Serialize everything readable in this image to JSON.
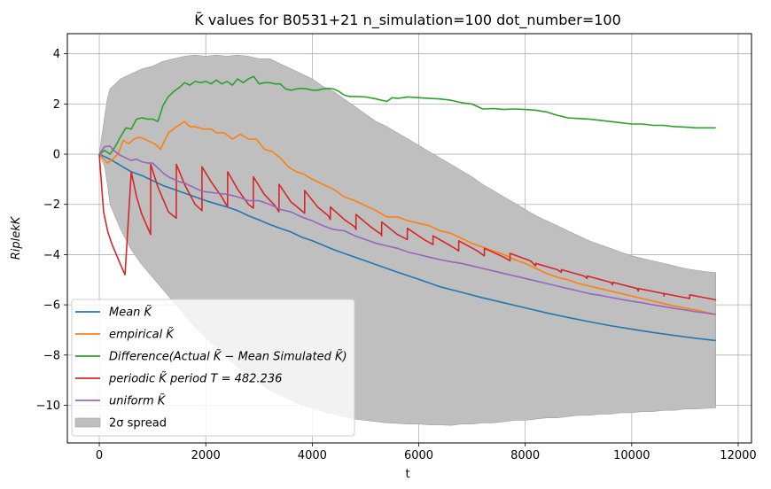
{
  "chart_data": {
    "type": "line",
    "title": "K̃ values for B0531+21 n_simulation=100 dot_number=100",
    "xlabel": "t",
    "ylabel": "RiplekK",
    "xlim": [
      -600,
      12250
    ],
    "ylim": [
      -11.5,
      4.8
    ],
    "xticks": [
      0,
      2000,
      4000,
      6000,
      8000,
      10000,
      12000
    ],
    "yticks": [
      4,
      2,
      0,
      -2,
      -4,
      -6,
      -8,
      -10
    ],
    "grid": true,
    "legend_position": "lower-left",
    "colors": {
      "mean": "#1f77b4",
      "empirical": "#ff7f0e",
      "difference": "#2ca02c",
      "periodic": "#d62728",
      "uniform": "#9467bd",
      "band": "#bfbfbf"
    },
    "band": {
      "name": "2σ spread",
      "x": [
        0,
        100,
        150,
        200,
        300,
        400,
        500,
        600,
        700,
        800,
        1000,
        1200,
        1400,
        1600,
        1800,
        2000,
        2200,
        2400,
        2600,
        2800,
        3000,
        3200,
        3400,
        3600,
        3800,
        4000,
        4200,
        4400,
        4600,
        4800,
        5000,
        5200,
        5400,
        5600,
        5800,
        6000,
        6200,
        6400,
        6600,
        6800,
        7000,
        7200,
        7400,
        7600,
        7800,
        8000,
        8200,
        8400,
        8600,
        8800,
        9000,
        9200,
        9400,
        9600,
        9800,
        10000,
        10200,
        10400,
        10600,
        10800,
        11000,
        11200,
        11400,
        11580
      ],
      "upper": [
        0,
        1.5,
        2.2,
        2.6,
        2.8,
        3.0,
        3.1,
        3.2,
        3.3,
        3.4,
        3.5,
        3.7,
        3.8,
        3.9,
        3.95,
        3.9,
        3.95,
        3.9,
        3.95,
        3.9,
        3.8,
        3.8,
        3.6,
        3.4,
        3.2,
        3.0,
        2.7,
        2.5,
        2.2,
        1.9,
        1.6,
        1.3,
        1.1,
        0.85,
        0.6,
        0.35,
        0.1,
        -0.15,
        -0.4,
        -0.65,
        -0.9,
        -1.2,
        -1.45,
        -1.7,
        -1.95,
        -2.2,
        -2.45,
        -2.65,
        -2.85,
        -3.05,
        -3.25,
        -3.45,
        -3.6,
        -3.75,
        -3.9,
        -4.05,
        -4.15,
        -4.25,
        -4.35,
        -4.45,
        -4.55,
        -4.62,
        -4.68,
        -4.72
      ],
      "lower": [
        0,
        -0.5,
        -1.2,
        -2.0,
        -2.5,
        -3.0,
        -3.4,
        -3.8,
        -4.1,
        -4.4,
        -4.9,
        -5.4,
        -5.9,
        -6.4,
        -6.9,
        -7.3,
        -7.7,
        -8.1,
        -8.5,
        -8.8,
        -9.1,
        -9.4,
        -9.6,
        -9.8,
        -10.0,
        -10.1,
        -10.25,
        -10.35,
        -10.45,
        -10.55,
        -10.6,
        -10.65,
        -10.7,
        -10.72,
        -10.75,
        -10.75,
        -10.78,
        -10.78,
        -10.8,
        -10.75,
        -10.75,
        -10.7,
        -10.7,
        -10.65,
        -10.6,
        -10.6,
        -10.55,
        -10.5,
        -10.5,
        -10.45,
        -10.4,
        -10.4,
        -10.35,
        -10.35,
        -10.3,
        -10.3,
        -10.25,
        -10.25,
        -10.2,
        -10.2,
        -10.15,
        -10.15,
        -10.12,
        -10.1
      ]
    },
    "series": [
      {
        "name": "Mean K̃",
        "key": "mean",
        "x": [
          0,
          200,
          400,
          600,
          800,
          1000,
          1200,
          1400,
          1600,
          1800,
          2000,
          2200,
          2400,
          2600,
          2800,
          3000,
          3200,
          3400,
          3600,
          3800,
          4000,
          4400,
          4800,
          5200,
          5600,
          6000,
          6400,
          6800,
          7200,
          7600,
          8000,
          8400,
          8800,
          9200,
          9600,
          10000,
          10400,
          10800,
          11200,
          11580
        ],
        "y": [
          0,
          -0.2,
          -0.45,
          -0.7,
          -0.85,
          -1.05,
          -1.25,
          -1.4,
          -1.55,
          -1.7,
          -1.85,
          -1.98,
          -2.1,
          -2.25,
          -2.45,
          -2.62,
          -2.8,
          -2.95,
          -3.1,
          -3.3,
          -3.45,
          -3.8,
          -4.1,
          -4.4,
          -4.7,
          -4.98,
          -5.28,
          -5.5,
          -5.72,
          -5.92,
          -6.12,
          -6.32,
          -6.5,
          -6.67,
          -6.83,
          -6.97,
          -7.1,
          -7.22,
          -7.33,
          -7.42
        ]
      },
      {
        "name": "empirical K̃",
        "key": "empirical",
        "x": [
          0,
          150,
          250,
          350,
          450,
          550,
          650,
          750,
          850,
          950,
          1050,
          1150,
          1300,
          1450,
          1600,
          1700,
          1800,
          1950,
          2100,
          2200,
          2350,
          2500,
          2650,
          2800,
          2950,
          3100,
          3250,
          3400,
          3550,
          3700,
          3850,
          4000,
          4200,
          4400,
          4600,
          4800,
          5000,
          5200,
          5400,
          5600,
          5800,
          6000,
          6200,
          6400,
          6600,
          6800,
          7000,
          7200,
          7400,
          7600,
          7800,
          8000,
          8200,
          8400,
          8600,
          8800,
          9000,
          9200,
          9400,
          9600,
          9800,
          10000,
          10200,
          10400,
          10600,
          10800,
          11000,
          11200,
          11400,
          11580
        ],
        "y": [
          0,
          -0.35,
          -0.2,
          0.0,
          0.55,
          0.42,
          0.6,
          0.68,
          0.6,
          0.5,
          0.4,
          0.2,
          0.85,
          1.1,
          1.3,
          1.1,
          1.1,
          1.0,
          1.0,
          0.85,
          0.85,
          0.6,
          0.8,
          0.6,
          0.6,
          0.2,
          0.1,
          -0.15,
          -0.5,
          -0.7,
          -0.8,
          -1.0,
          -1.2,
          -1.4,
          -1.7,
          -1.85,
          -2.05,
          -2.25,
          -2.5,
          -2.5,
          -2.65,
          -2.75,
          -2.85,
          -3.05,
          -3.15,
          -3.35,
          -3.55,
          -3.7,
          -3.85,
          -4.0,
          -4.2,
          -4.35,
          -4.55,
          -4.75,
          -4.9,
          -5.0,
          -5.15,
          -5.25,
          -5.35,
          -5.45,
          -5.55,
          -5.65,
          -5.75,
          -5.85,
          -5.95,
          -6.05,
          -6.12,
          -6.2,
          -6.3,
          -6.38
        ]
      },
      {
        "name": "Difference(Actual K̃ − Mean Simulated K̃)",
        "key": "difference",
        "x": [
          0,
          100,
          200,
          300,
          400,
          500,
          600,
          700,
          800,
          900,
          1000,
          1100,
          1200,
          1300,
          1400,
          1500,
          1600,
          1700,
          1800,
          1900,
          2000,
          2100,
          2200,
          2300,
          2400,
          2500,
          2600,
          2700,
          2800,
          2900,
          3000,
          3100,
          3200,
          3300,
          3400,
          3500,
          3600,
          3700,
          3800,
          3900,
          4000,
          4100,
          4200,
          4300,
          4400,
          4500,
          4600,
          4700,
          4800,
          5000,
          5200,
          5400,
          5500,
          5600,
          5800,
          6000,
          6200,
          6400,
          6600,
          6800,
          7000,
          7200,
          7400,
          7600,
          7800,
          8000,
          8200,
          8400,
          8600,
          8800,
          9000,
          9200,
          9400,
          9600,
          9800,
          10000,
          10200,
          10400,
          10600,
          10800,
          11000,
          11200,
          11400,
          11580
        ],
        "y": [
          0,
          0.15,
          0.0,
          0.3,
          0.7,
          1.05,
          1.0,
          1.4,
          1.45,
          1.4,
          1.4,
          1.3,
          1.95,
          2.3,
          2.5,
          2.65,
          2.85,
          2.75,
          2.9,
          2.85,
          2.9,
          2.8,
          2.95,
          2.8,
          2.9,
          2.75,
          3.0,
          2.85,
          3.0,
          3.1,
          2.8,
          2.85,
          2.85,
          2.8,
          2.8,
          2.6,
          2.55,
          2.6,
          2.62,
          2.6,
          2.55,
          2.55,
          2.6,
          2.62,
          2.6,
          2.5,
          2.35,
          2.3,
          2.3,
          2.28,
          2.2,
          2.1,
          2.25,
          2.22,
          2.28,
          2.25,
          2.22,
          2.2,
          2.15,
          2.05,
          2.0,
          1.8,
          1.82,
          1.78,
          1.8,
          1.78,
          1.75,
          1.68,
          1.55,
          1.45,
          1.42,
          1.4,
          1.35,
          1.3,
          1.25,
          1.2,
          1.2,
          1.15,
          1.15,
          1.1,
          1.08,
          1.05,
          1.05,
          1.05
        ]
      },
      {
        "name": "periodic K̃ period T = 482.236",
        "key": "periodic",
        "x": [
          0,
          80,
          160,
          240,
          320,
          400,
          482,
          483,
          600,
          700,
          800,
          964,
          965,
          1100,
          1300,
          1446,
          1447,
          1600,
          1800,
          1928,
          1929,
          2100,
          2300,
          2410,
          2411,
          2600,
          2800,
          2893,
          2894,
          3100,
          3300,
          3375,
          3376,
          3600,
          3800,
          3857,
          3858,
          4100,
          4300,
          4339,
          4340,
          4600,
          4800,
          4821,
          4822,
          5100,
          5300,
          5303,
          5304,
          5600,
          5785,
          5786,
          6100,
          6267,
          6268,
          6600,
          6750,
          6751,
          7100,
          7232,
          7233,
          7600,
          7714,
          7715,
          8100,
          8196,
          8197,
          8600,
          8678,
          8679,
          9100,
          9160,
          9161,
          9600,
          9642,
          9643,
          10100,
          10125,
          10126,
          10600,
          10607,
          10608,
          11089,
          11090,
          11571,
          11580
        ],
        "y": [
          0,
          -2.3,
          -3.1,
          -3.6,
          -4.0,
          -4.4,
          -4.8,
          -4.8,
          -0.7,
          -1.7,
          -2.4,
          -3.2,
          -0.4,
          -1.3,
          -2.3,
          -2.55,
          -0.4,
          -1.2,
          -2.0,
          -2.25,
          -0.5,
          -1.1,
          -1.7,
          -2.1,
          -0.7,
          -1.4,
          -2.0,
          -2.15,
          -0.9,
          -1.6,
          -2.05,
          -2.3,
          -1.2,
          -1.9,
          -2.25,
          -2.35,
          -1.45,
          -2.1,
          -2.45,
          -2.6,
          -2.1,
          -2.6,
          -2.9,
          -3.0,
          -2.4,
          -2.9,
          -3.2,
          -3.25,
          -2.7,
          -3.2,
          -3.4,
          -2.95,
          -3.4,
          -3.6,
          -3.25,
          -3.65,
          -3.85,
          -3.45,
          -3.85,
          -4.05,
          -3.75,
          -4.1,
          -4.25,
          -3.95,
          -4.25,
          -4.45,
          -4.35,
          -4.6,
          -4.7,
          -4.6,
          -4.85,
          -4.95,
          -4.85,
          -5.1,
          -5.2,
          -5.1,
          -5.35,
          -5.45,
          -5.35,
          -5.55,
          -5.65,
          -5.55,
          -5.75,
          -5.6,
          -5.8,
          -5.82
        ]
      },
      {
        "name": "uniform K̃",
        "key": "uniform",
        "x": [
          0,
          100,
          200,
          300,
          400,
          500,
          600,
          700,
          800,
          900,
          1000,
          1100,
          1200,
          1300,
          1400,
          1500,
          1600,
          1700,
          1800,
          1900,
          2000,
          2200,
          2400,
          2600,
          2800,
          3000,
          3200,
          3400,
          3600,
          3800,
          4000,
          4200,
          4400,
          4600,
          4800,
          5000,
          5200,
          5400,
          5600,
          5800,
          6000,
          6200,
          6400,
          6600,
          6800,
          7000,
          7200,
          7400,
          7600,
          7800,
          8000,
          8200,
          8400,
          8600,
          8800,
          9000,
          9200,
          9400,
          9600,
          9800,
          10000,
          10200,
          10400,
          10600,
          10800,
          11000,
          11200,
          11400,
          11580
        ],
        "y": [
          0,
          0.3,
          0.32,
          0.1,
          -0.05,
          -0.15,
          -0.25,
          -0.2,
          -0.3,
          -0.35,
          -0.35,
          -0.55,
          -0.75,
          -0.9,
          -1.0,
          -1.1,
          -1.15,
          -1.25,
          -1.35,
          -1.45,
          -1.5,
          -1.55,
          -1.6,
          -1.7,
          -1.85,
          -1.85,
          -2.0,
          -2.2,
          -2.3,
          -2.5,
          -2.65,
          -2.85,
          -3.0,
          -3.05,
          -3.25,
          -3.4,
          -3.55,
          -3.65,
          -3.75,
          -3.9,
          -4.0,
          -4.1,
          -4.2,
          -4.28,
          -4.35,
          -4.45,
          -4.55,
          -4.65,
          -4.75,
          -4.85,
          -4.95,
          -5.05,
          -5.15,
          -5.25,
          -5.35,
          -5.45,
          -5.55,
          -5.62,
          -5.7,
          -5.78,
          -5.85,
          -5.92,
          -6.0,
          -6.07,
          -6.14,
          -6.2,
          -6.27,
          -6.33,
          -6.38
        ]
      }
    ],
    "legend": [
      {
        "key": "mean",
        "label": "Mean K̃"
      },
      {
        "key": "empirical",
        "label": "empirical K̃"
      },
      {
        "key": "difference",
        "label": "Difference(Actual K̃ − Mean Simulated K̃)"
      },
      {
        "key": "periodic",
        "label": "periodic K̃ period T = 482.236"
      },
      {
        "key": "uniform",
        "label": "uniform K̃"
      },
      {
        "key": "band",
        "label": "2σ spread"
      }
    ]
  }
}
